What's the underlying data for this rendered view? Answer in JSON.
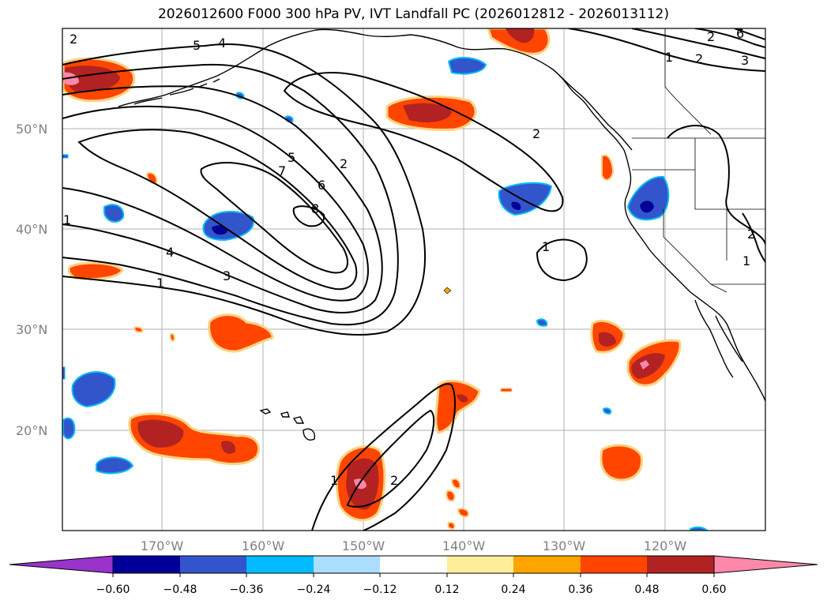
{
  "title": "2026012600 F000 300 hPa PV, IVT Landfall PC (2026012812 - 2026013112)",
  "lat_ticks": [
    "50°N",
    "40°N",
    "30°N",
    "20°N"
  ],
  "lon_ticks": [
    "170°W",
    "160°W",
    "150°W",
    "140°W",
    "130°W",
    "120°W"
  ],
  "colorbar": {
    "tick_labels": [
      "−0.60",
      "−0.48",
      "−0.36",
      "−0.24",
      "−0.12",
      "0.12",
      "0.24",
      "0.36",
      "0.48",
      "0.60"
    ],
    "colors": [
      "#9933cc",
      "#000099",
      "#3355cc",
      "#00bbff",
      "#aaddff",
      "#ffffff",
      "#ffee99",
      "#ffa500",
      "#ff4500",
      "#b22222",
      "#ff88aa"
    ]
  },
  "contour_labels": [
    "2",
    "5",
    "4",
    "1",
    "2",
    "3",
    "6",
    "2",
    "5",
    "7",
    "6",
    "8",
    "2",
    "1",
    "4",
    "3",
    "1",
    "1",
    "2",
    "2",
    "1",
    "2",
    "1"
  ],
  "colors": {
    "positive_strong": "#b22222",
    "positive_mid": "#ff4500",
    "positive_light": "#ffa500",
    "positive_max": "#ff88aa",
    "negative_mid": "#3355cc",
    "negative_light": "#00bbff",
    "negative_strong": "#000099"
  }
}
